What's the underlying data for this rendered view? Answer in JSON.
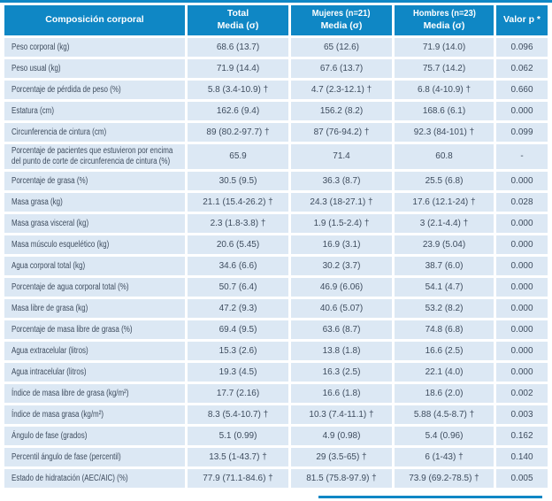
{
  "colors": {
    "header_bg": "#0f87c5",
    "row_bg": "#dce8f4",
    "text": "#3e4c5e",
    "accent_line": "#0f87c5"
  },
  "table": {
    "header": {
      "col1": "Composición corporal",
      "col2": {
        "line1": "Total",
        "line2": "Media (σ)"
      },
      "col3": {
        "line1": "Mujeres (n=21)",
        "line2": "Media (σ)"
      },
      "col4": {
        "line1": "Hombres (n=23)",
        "line2": "Media (σ)"
      },
      "col5": "Valor p *"
    },
    "rows": [
      {
        "label": "Peso corporal (kg)",
        "total": "68.6 (13.7)",
        "mujeres": "65 (12.6)",
        "hombres": "71.9 (14.0)",
        "p": "0.096"
      },
      {
        "label": "Peso usual (kg)",
        "total": "71.9 (14.4)",
        "mujeres": "67.6 (13.7)",
        "hombres": "75.7 (14.2)",
        "p": "0.062"
      },
      {
        "label": "Porcentaje de pérdida de peso (%)",
        "total": "5.8 (3.4-10.9) †",
        "mujeres": "4.7 (2.3-12.1) †",
        "hombres": "6.8 (4-10.9) †",
        "p": "0.660"
      },
      {
        "label": "Estatura (cm)",
        "total": "162.6 (9.4)",
        "mujeres": "156.2 (8.2)",
        "hombres": "168.6 (6.1)",
        "p": "0.000"
      },
      {
        "label": "Circunferencia de cintura (cm)",
        "total": "89 (80.2-97.7) †",
        "mujeres": "87 (76-94.2) †",
        "hombres": "92.3 (84-101) †",
        "p": "0.099"
      },
      {
        "label": "Porcentaje de pacientes que estuvieron por encima del punto de corte de circunferencia de cintura (%)",
        "total": "65.9",
        "mujeres": "71.4",
        "hombres": "60.8",
        "p": "-"
      },
      {
        "label": "Porcentaje de grasa (%)",
        "total": "30.5 (9.5)",
        "mujeres": "36.3 (8.7)",
        "hombres": "25.5 (6.8)",
        "p": "0.000"
      },
      {
        "label": "Masa grasa (kg)",
        "total": "21.1 (15.4-26.2) †",
        "mujeres": "24.3 (18-27.1) †",
        "hombres": "17.6 (12.1-24) †",
        "p": "0.028"
      },
      {
        "label": "Masa grasa visceral (kg)",
        "total": "2.3 (1.8-3.8) †",
        "mujeres": "1.9 (1.5-2.4) †",
        "hombres": "3 (2.1-4.4) †",
        "p": "0.000"
      },
      {
        "label": "Masa músculo esquelético (kg)",
        "total": "20.6 (5.45)",
        "mujeres": "16.9 (3.1)",
        "hombres": "23.9 (5.04)",
        "p": "0.000"
      },
      {
        "label": "Agua corporal total (kg)",
        "total": "34.6 (6.6)",
        "mujeres": "30.2 (3.7)",
        "hombres": "38.7 (6.0)",
        "p": "0.000"
      },
      {
        "label": "Porcentaje de agua corporal total (%)",
        "total": "50.7 (6.4)",
        "mujeres": "46.9 (6.06)",
        "hombres": "54.1 (4.7)",
        "p": "0.000"
      },
      {
        "label": "Masa libre de grasa (kg)",
        "total": "47.2 (9.3)",
        "mujeres": "40.6 (5.07)",
        "hombres": "53.2 (8.2)",
        "p": "0.000"
      },
      {
        "label": "Porcentaje de masa libre de grasa (%)",
        "total": "69.4 (9.5)",
        "mujeres": "63.6 (8.7)",
        "hombres": "74.8 (6.8)",
        "p": "0.000"
      },
      {
        "label": "Agua extracelular (litros)",
        "total": "15.3 (2.6)",
        "mujeres": "13.8 (1.8)",
        "hombres": "16.6 (2.5)",
        "p": "0.000"
      },
      {
        "label": "Agua intracelular (litros)",
        "total": "19.3 (4.5)",
        "mujeres": "16.3 (2.5)",
        "hombres": "22.1 (4.0)",
        "p": "0.000"
      },
      {
        "label": "Índice de masa libre de grasa (kg/m²)",
        "total": "17.7 (2.16)",
        "mujeres": "16.6 (1.8)",
        "hombres": "18.6 (2.0)",
        "p": "0.002"
      },
      {
        "label": "Índice de masa grasa (kg/m²)",
        "total": "8.3 (5.4-10.7) †",
        "mujeres": "10.3 (7.4-11.1) †",
        "hombres": "5.88 (4.5-8.7) †",
        "p": "0.003"
      },
      {
        "label": "Ángulo de fase (grados)",
        "total": "5.1 (0.99)",
        "mujeres": "4.9 (0.98)",
        "hombres": "5.4 (0.96)",
        "p": "0.162"
      },
      {
        "label": "Percentil ángulo de fase (percentil)",
        "total": "13.5 (1-43.7) †",
        "mujeres": "29 (3.5-65) †",
        "hombres": "6 (1-43) †",
        "p": "0.140"
      },
      {
        "label": "Estado de hidratación (AEC/AIC) (%)",
        "total": "77.9 (71.1-84.6) †",
        "mujeres": "81.5 (75.8-97.9) †",
        "hombres": "73.9 (69.2-78.5) †",
        "p": "0.005"
      }
    ]
  }
}
